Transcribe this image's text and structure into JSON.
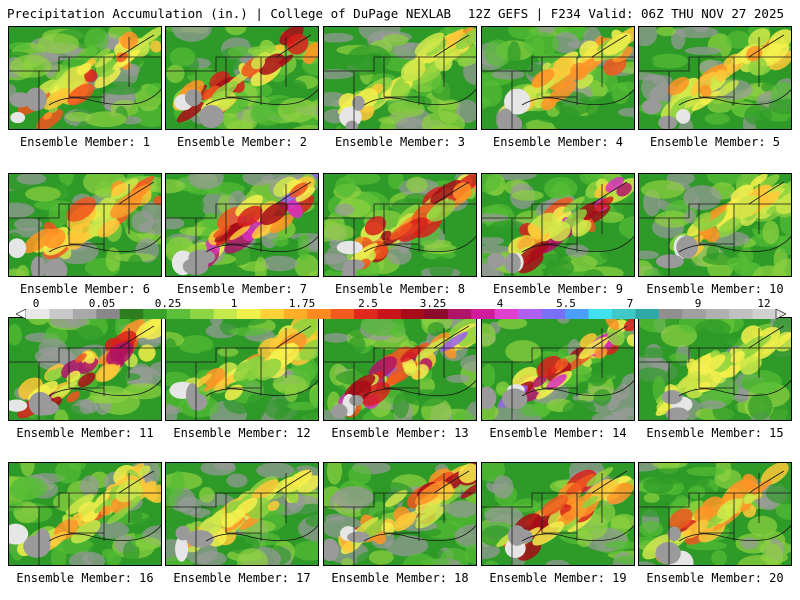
{
  "header": {
    "left": "Precipitation Accumulation (in.) | College of DuPage NEXLAB",
    "right": "12Z GEFS | F234 Valid: 06Z THU NOV 27 2025"
  },
  "colorbar": {
    "labels": [
      "0",
      "0.05",
      "0.25",
      "1",
      "1.75",
      "2.5",
      "3.25",
      "4",
      "5.5",
      "7",
      "9",
      "12"
    ],
    "colors": [
      "#e8e8e8",
      "#c8c8c8",
      "#a8a8a8",
      "#888888",
      "#2e7d1e",
      "#3aa02c",
      "#5cbf3a",
      "#8fd442",
      "#c5e84a",
      "#f0f04a",
      "#ffd23a",
      "#ffae2a",
      "#ff8a20",
      "#f25a1e",
      "#e0281c",
      "#c8141a",
      "#a80c18",
      "#8c0a2a",
      "#b01468",
      "#d01c9c",
      "#e040d0",
      "#b060f0",
      "#7a70f8",
      "#4aa0f8",
      "#40e0f0",
      "#40c8c8",
      "#30a8a8",
      "#909090",
      "#a0a0a0",
      "#b0b0b0",
      "#c0c0c0",
      "#d0d0d0"
    ]
  },
  "members": [
    {
      "label": "Ensemble Member: 1",
      "intensity": 1.6
    },
    {
      "label": "Ensemble Member: 2",
      "intensity": 1.8
    },
    {
      "label": "Ensemble Member: 3",
      "intensity": 1.1
    },
    {
      "label": "Ensemble Member: 4",
      "intensity": 1.3
    },
    {
      "label": "Ensemble Member: 5",
      "intensity": 1.2
    },
    {
      "label": "Ensemble Member: 6",
      "intensity": 1.5
    },
    {
      "label": "Ensemble Member: 7",
      "intensity": 2.6
    },
    {
      "label": "Ensemble Member: 8",
      "intensity": 2.0
    },
    {
      "label": "Ensemble Member: 9",
      "intensity": 2.4
    },
    {
      "label": "Ensemble Member: 10",
      "intensity": 1.2
    },
    {
      "label": "Ensemble Member: 11",
      "intensity": 2.2
    },
    {
      "label": "Ensemble Member: 12",
      "intensity": 1.1
    },
    {
      "label": "Ensemble Member: 13",
      "intensity": 2.6
    },
    {
      "label": "Ensemble Member: 14",
      "intensity": 2.7
    },
    {
      "label": "Ensemble Member: 15",
      "intensity": 0.8
    },
    {
      "label": "Ensemble Member: 16",
      "intensity": 1.3
    },
    {
      "label": "Ensemble Member: 17",
      "intensity": 1.1
    },
    {
      "label": "Ensemble Member: 18",
      "intensity": 2.1
    },
    {
      "label": "Ensemble Member: 19",
      "intensity": 1.9
    },
    {
      "label": "Ensemble Member: 20",
      "intensity": 1.7
    }
  ]
}
